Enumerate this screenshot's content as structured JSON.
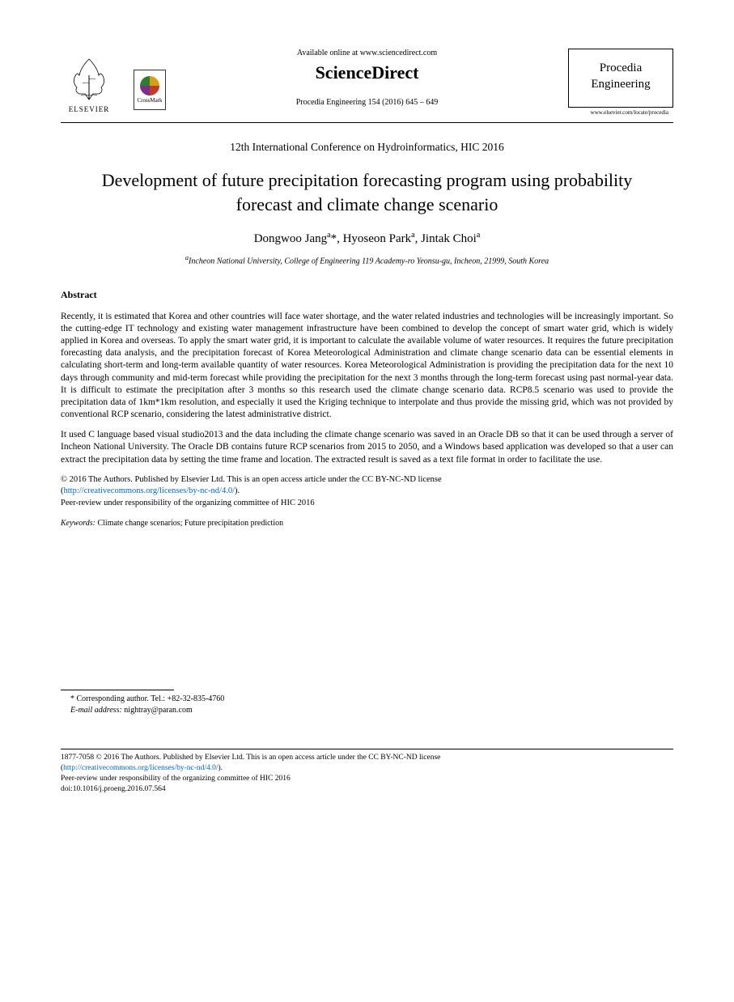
{
  "header": {
    "elsevier_label": "ELSEVIER",
    "crossmark_label": "CrossMark",
    "available_online": "Available online at www.sciencedirect.com",
    "sciencedirect": "ScienceDirect",
    "journal_ref": "Procedia Engineering 154 (2016) 645 – 649",
    "procedia_line1": "Procedia",
    "procedia_line2": "Engineering",
    "procedia_url": "www.elsevier.com/locate/procedia"
  },
  "conference": "12th International Conference on Hydroinformatics, HIC 2016",
  "title": "Development of future precipitation forecasting program using probability forecast and climate change scenario",
  "authors_html": "Dongwoo Jang<sup>a</sup>*, Hyoseon Park<sup>a</sup>, Jintak Choi<sup>a</sup>",
  "affiliation": "aIncheon National University, College of Engineering 119 Academy-ro Yeonsu-gu, Incheon, 21999, South Korea",
  "abstract_heading": "Abstract",
  "abstract_p1": "Recently, it is estimated that Korea and other countries will face water shortage, and the water related industries and technologies will be increasingly important. So the cutting-edge IT technology and existing water management infrastructure have been combined to develop the concept of smart water grid, which is widely applied in Korea and overseas. To apply the smart water grid, it is important to calculate the available volume of water resources. It requires the future precipitation forecasting data analysis, and the precipitation forecast of Korea Meteorological Administration and climate change scenario data can be essential elements in calculating short-term and long-term available quantity of water resources. Korea Meteorological Administration is providing the precipitation data for the next 10 days through community and mid-term forecast while providing the precipitation for the next 3 months through the long-term forecast using past normal-year data. It is difficult to estimate the precipitation after 3 months so this research used the climate change scenario data. RCP8.5 scenario was used to provide the precipitation data of 1km*1km resolution, and especially it used the Kriging technique to interpolate and thus provide the missing grid, which was not provided by conventional RCP scenario, considering the latest administrative district.",
  "abstract_p2": "It used C language based visual studio2013 and the data including the climate change scenario was saved in an Oracle DB so that it can be used through a server of Incheon National University. The Oracle DB contains future RCP scenarios from 2015 to 2050, and a Windows based application was developed so that a user can extract the precipitation data by setting the time frame and location. The extracted result is saved as a text file format in order to facilitate the use.",
  "license_line1": "© 2016 The Authors. Published by Elsevier Ltd. This is an open access article under the CC BY-NC-ND license",
  "license_link_text": "http://creativecommons.org/licenses/by-nc-nd/4.0/",
  "peer_review": "Peer-review under responsibility of the organizing committee of HIC 2016",
  "keywords_label": "Keywords:",
  "keywords_text": " Climate change scenarios; Future precipitation prediction",
  "footnote_corresponding": "* Corresponding author. Tel.: +82-32-835-4760",
  "footnote_email_label": "E-mail address:",
  "footnote_email": " nightray@paran.com",
  "footer": {
    "line1": "1877-7058 © 2016 The Authors. Published by Elsevier Ltd. This is an open access article under the CC BY-NC-ND license",
    "link_text": "http://creativecommons.org/licenses/by-nc-nd/4.0/",
    "line2": "Peer-review under responsibility of the organizing committee of HIC 2016",
    "doi": "doi:10.1016/j.proeng.2016.07.564"
  },
  "colors": {
    "text": "#000000",
    "link": "#0066cc",
    "background": "#ffffff"
  },
  "typography": {
    "body_font": "Times New Roman",
    "title_fontsize_pt": 22,
    "abstract_fontsize_pt": 11.5,
    "footer_fontsize_pt": 9.5
  }
}
